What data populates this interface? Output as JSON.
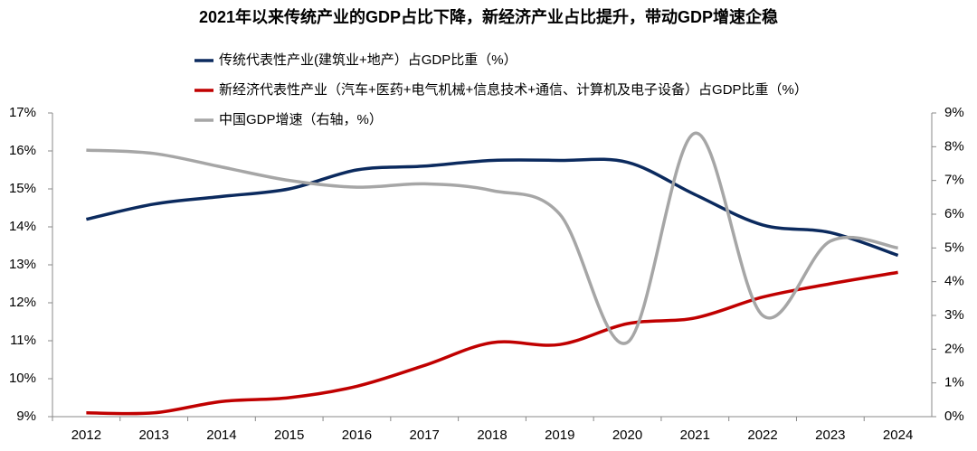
{
  "chart_data": {
    "type": "line",
    "title": "2021年以来传统产业的GDP占比下降，新经济产业占比提升，带动GDP增速企稳",
    "categories": [
      "2012",
      "2013",
      "2014",
      "2015",
      "2016",
      "2017",
      "2018",
      "2019",
      "2020",
      "2021",
      "2022",
      "2023",
      "2024"
    ],
    "series": [
      {
        "name": "传统代表性产业(建筑业+地产）占GDP比重（%）",
        "color": "#0b2a5e",
        "values": [
          14.2,
          14.6,
          14.8,
          15.0,
          15.5,
          15.6,
          15.75,
          15.75,
          15.7,
          14.85,
          14.05,
          13.85,
          13.25
        ]
      },
      {
        "name": "新经济代表性产业（汽车+医药+电气机械+信息技术+通信、计算机及电子设备）占GDP比重（%）",
        "color": "#c00000",
        "values": [
          9.1,
          9.1,
          9.4,
          9.5,
          9.8,
          10.35,
          10.95,
          10.9,
          11.45,
          11.6,
          12.15,
          12.5,
          12.8
        ]
      },
      {
        "name": "中国GDP增速（右轴，%）",
        "color": "#a6a6a6",
        "axis": "y2",
        "values": [
          7.9,
          7.8,
          7.4,
          7.0,
          6.8,
          6.9,
          6.7,
          6.0,
          2.2,
          8.4,
          3.0,
          5.2,
          5.0
        ]
      }
    ],
    "ylim": [
      9,
      17
    ],
    "yticks": [
      {
        "value": 9,
        "label": "9%"
      },
      {
        "value": 10,
        "label": "10%"
      },
      {
        "value": 11,
        "label": "11%"
      },
      {
        "value": 12,
        "label": "12%"
      },
      {
        "value": 13,
        "label": "13%"
      },
      {
        "value": 14,
        "label": "14%"
      },
      {
        "value": 15,
        "label": "15%"
      },
      {
        "value": 16,
        "label": "16%"
      },
      {
        "value": 17,
        "label": "17%"
      }
    ],
    "y2lim": [
      0,
      9
    ],
    "y2ticks": [
      {
        "value": 0,
        "label": "0%"
      },
      {
        "value": 1,
        "label": "1%"
      },
      {
        "value": 2,
        "label": "2%"
      },
      {
        "value": 3,
        "label": "3%"
      },
      {
        "value": 4,
        "label": "4%"
      },
      {
        "value": 5,
        "label": "5%"
      },
      {
        "value": 6,
        "label": "6%"
      },
      {
        "value": 7,
        "label": "7%"
      },
      {
        "value": 8,
        "label": "8%"
      },
      {
        "value": 9,
        "label": "9%"
      }
    ],
    "smooth": true
  }
}
